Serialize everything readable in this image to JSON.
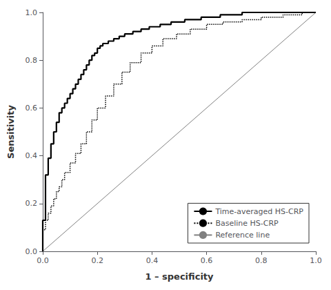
{
  "chart_data": {
    "type": "line",
    "xlabel": "1 – specificity",
    "ylabel": "Sensitivity",
    "xlim": [
      0.0,
      1.0
    ],
    "ylim": [
      0.0,
      1.0
    ],
    "xticks": [
      {
        "value": 0.0,
        "label": "0.0"
      },
      0.2,
      0.4,
      0.6,
      0.8,
      {
        "value": 1.0,
        "label": "1.0"
      }
    ],
    "yticks": [
      {
        "value": 0.0,
        "label": "0.0"
      },
      0.2,
      0.4,
      0.6,
      0.8,
      {
        "value": 1.0,
        "label": "1.0"
      }
    ],
    "grid": false,
    "legend": "lower right",
    "series": [
      {
        "name": "Time-averaged HS-CRP",
        "color": "#000000",
        "line_style": "solid",
        "x": [
          0.0,
          0.0,
          0.0,
          0.01,
          0.01,
          0.01,
          0.01,
          0.02,
          0.02,
          0.02,
          0.03,
          0.03,
          0.03,
          0.04,
          0.04,
          0.04,
          0.05,
          0.05,
          0.05,
          0.06,
          0.06,
          0.06,
          0.07,
          0.07,
          0.08,
          0.08,
          0.09,
          0.09,
          0.1,
          0.1,
          0.11,
          0.11,
          0.12,
          0.12,
          0.13,
          0.13,
          0.14,
          0.14,
          0.15,
          0.15,
          0.16,
          0.16,
          0.17,
          0.17,
          0.18,
          0.18,
          0.19,
          0.19,
          0.2,
          0.2,
          0.21,
          0.21,
          0.22,
          0.22,
          0.24,
          0.24,
          0.26,
          0.26,
          0.28,
          0.28,
          0.3,
          0.3,
          0.33,
          0.33,
          0.36,
          0.36,
          0.39,
          0.39,
          0.43,
          0.43,
          0.47,
          0.47,
          0.52,
          0.52,
          0.58,
          0.58,
          0.65,
          0.65,
          0.73,
          0.73,
          0.82,
          0.82,
          0.91,
          0.91,
          1.0
        ],
        "values": [
          0.0,
          0.07,
          0.13,
          0.13,
          0.2,
          0.26,
          0.32,
          0.32,
          0.36,
          0.39,
          0.39,
          0.42,
          0.45,
          0.45,
          0.48,
          0.5,
          0.5,
          0.52,
          0.54,
          0.54,
          0.56,
          0.58,
          0.58,
          0.6,
          0.6,
          0.62,
          0.62,
          0.64,
          0.64,
          0.66,
          0.66,
          0.68,
          0.68,
          0.7,
          0.7,
          0.72,
          0.72,
          0.74,
          0.74,
          0.76,
          0.76,
          0.78,
          0.78,
          0.8,
          0.8,
          0.82,
          0.82,
          0.83,
          0.83,
          0.85,
          0.85,
          0.86,
          0.86,
          0.87,
          0.87,
          0.88,
          0.88,
          0.89,
          0.89,
          0.9,
          0.9,
          0.91,
          0.91,
          0.92,
          0.92,
          0.93,
          0.93,
          0.94,
          0.94,
          0.95,
          0.95,
          0.96,
          0.96,
          0.97,
          0.97,
          0.98,
          0.98,
          0.99,
          0.99,
          1.0,
          1.0,
          1.0,
          1.0,
          1.0,
          1.0
        ]
      },
      {
        "name": "Baseline HS-CRP",
        "color": "#000000",
        "line_style": "dotted",
        "x": [
          0.0,
          0.0,
          0.01,
          0.01,
          0.02,
          0.02,
          0.03,
          0.03,
          0.04,
          0.04,
          0.05,
          0.05,
          0.06,
          0.06,
          0.07,
          0.07,
          0.08,
          0.08,
          0.1,
          0.1,
          0.12,
          0.12,
          0.14,
          0.14,
          0.16,
          0.16,
          0.18,
          0.18,
          0.2,
          0.2,
          0.23,
          0.23,
          0.26,
          0.26,
          0.29,
          0.29,
          0.32,
          0.32,
          0.36,
          0.36,
          0.4,
          0.4,
          0.44,
          0.44,
          0.49,
          0.49,
          0.54,
          0.54,
          0.6,
          0.6,
          0.66,
          0.66,
          0.73,
          0.73,
          0.8,
          0.8,
          0.88,
          0.88,
          0.95,
          0.95,
          1.0
        ],
        "values": [
          0.0,
          0.09,
          0.09,
          0.13,
          0.13,
          0.16,
          0.16,
          0.19,
          0.19,
          0.22,
          0.22,
          0.25,
          0.25,
          0.27,
          0.27,
          0.3,
          0.3,
          0.33,
          0.33,
          0.37,
          0.37,
          0.41,
          0.41,
          0.45,
          0.45,
          0.5,
          0.5,
          0.55,
          0.55,
          0.6,
          0.6,
          0.65,
          0.65,
          0.7,
          0.7,
          0.75,
          0.75,
          0.79,
          0.79,
          0.83,
          0.83,
          0.86,
          0.86,
          0.89,
          0.89,
          0.91,
          0.91,
          0.93,
          0.93,
          0.95,
          0.95,
          0.96,
          0.96,
          0.97,
          0.97,
          0.98,
          0.98,
          0.99,
          0.99,
          1.0,
          1.0
        ]
      },
      {
        "name": "Reference line",
        "color": "#808080",
        "line_style": "solid",
        "x": [
          0,
          1
        ],
        "values": [
          0,
          1
        ]
      }
    ]
  }
}
